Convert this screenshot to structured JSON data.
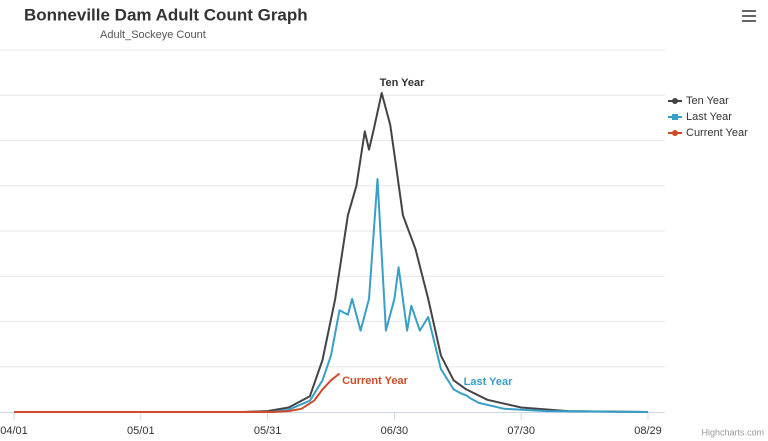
{
  "chart_data": {
    "type": "line",
    "title": "Bonneville Dam Adult Count Graph",
    "subtitle": "Adult_Sockeye Count",
    "credits": "Highcharts.com",
    "xticks": [
      "04/01",
      "05/01",
      "05/31",
      "06/30",
      "07/30",
      "08/29"
    ],
    "ylim": [
      0,
      8
    ],
    "gridlines": [
      1,
      2,
      3,
      4,
      5,
      6,
      7,
      8
    ],
    "legend": "right",
    "series": [
      {
        "name": "Ten Year",
        "color": "#434348",
        "label": "Ten Year",
        "x": [
          "04/01",
          "05/25",
          "05/31",
          "06/05",
          "06/10",
          "06/13",
          "06/16",
          "06/19",
          "06/21",
          "06/23",
          "06/24",
          "06/25",
          "06/27",
          "06/29",
          "06/30",
          "07/02",
          "07/05",
          "07/08",
          "07/11",
          "07/14",
          "07/17",
          "07/22",
          "07/30",
          "08/10",
          "08/29"
        ],
        "values": [
          0,
          0,
          0.02,
          0.1,
          0.35,
          1.15,
          2.5,
          4.35,
          5,
          6.2,
          5.8,
          6.2,
          7.05,
          6.35,
          5.7,
          4.35,
          3.6,
          2.5,
          1.25,
          0.7,
          0.5,
          0.27,
          0.1,
          0.02,
          0
        ]
      },
      {
        "name": "Last Year",
        "color": "#3a9fc6",
        "label": "Last Year",
        "x": [
          "04/01",
          "06/01",
          "06/05",
          "06/10",
          "06/13",
          "06/15",
          "06/17",
          "06/19",
          "06/20",
          "06/22",
          "06/24",
          "06/26",
          "06/28",
          "06/30",
          "07/01",
          "07/03",
          "07/04",
          "07/06",
          "07/08",
          "07/11",
          "07/14",
          "07/16",
          "07/17",
          "07/18",
          "07/20",
          "07/26",
          "08/05",
          "08/29"
        ],
        "values": [
          0,
          0,
          0.05,
          0.25,
          0.7,
          1.25,
          2.25,
          2.15,
          2.5,
          1.8,
          2.5,
          5.15,
          1.8,
          2.5,
          3.2,
          1.8,
          2.35,
          1.8,
          2.1,
          0.95,
          0.5,
          0.4,
          0.37,
          0.3,
          0.2,
          0.07,
          0.02,
          0
        ]
      },
      {
        "name": "Current Year",
        "color": "#d04a2a",
        "label": "Current Year",
        "x": [
          "04/01",
          "06/01",
          "06/05",
          "06/08",
          "06/11",
          "06/13",
          "06/15",
          "06/17"
        ],
        "values": [
          0,
          0,
          0.02,
          0.07,
          0.25,
          0.5,
          0.7,
          0.85
        ]
      }
    ]
  }
}
